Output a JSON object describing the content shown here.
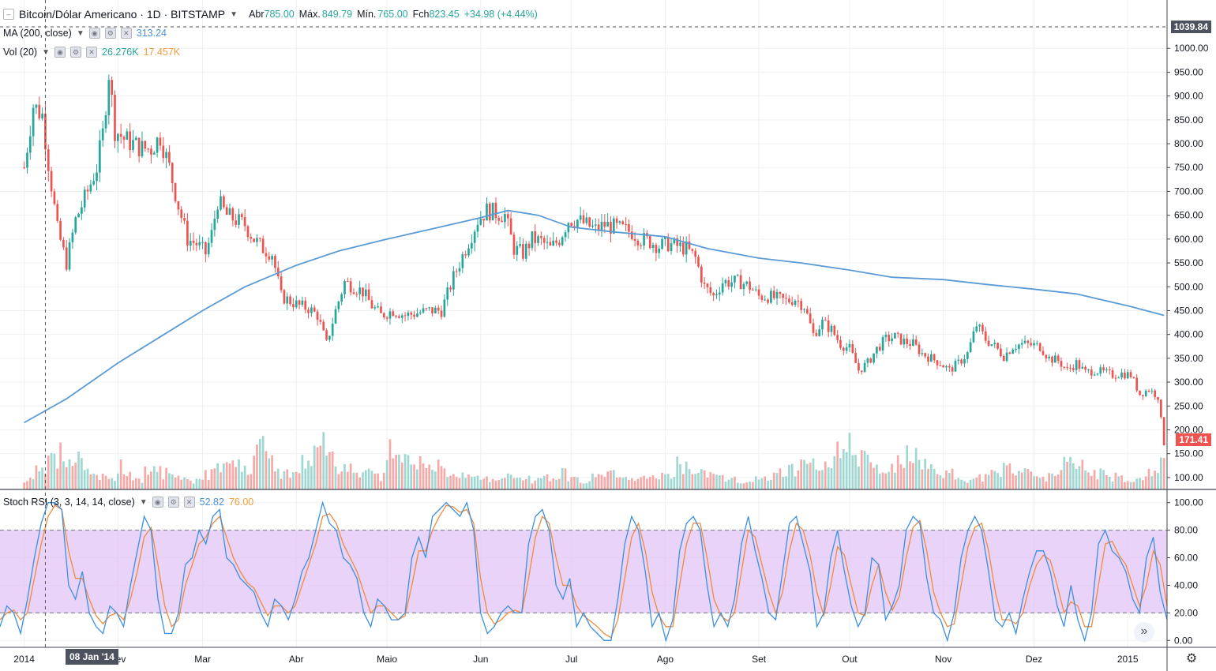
{
  "header": {
    "symbol": "Bitcoin/Dólar Americano · 1D · BITSTAMP",
    "open_label": "Abr",
    "open_value": "785.00",
    "high_label": "Máx.",
    "high_value": "849.79",
    "low_label": "Mín.",
    "low_value": "765.00",
    "close_label": "Fch",
    "close_value": "823.45",
    "change": "+34.98 (+4.44%)"
  },
  "indicators": {
    "ma_label": "MA (200, close)",
    "ma_value": "313.24",
    "vol_label": "Vol (20)",
    "vol_value1": "26.276K",
    "vol_value2": "17.457K",
    "stoch_label": "Stoch RSI (3, 3, 14, 14, close)",
    "stoch_k": "52.82",
    "stoch_d": "76.00"
  },
  "crosshair": {
    "date": "08 Jan '14",
    "price": "1039.84"
  },
  "last_price": "171.41",
  "colors": {
    "up": "#26a69a",
    "down": "#ef5350",
    "ma": "#5b9bd5",
    "k": "#3d8fe0",
    "d": "#f08a3c",
    "band": "#e1c4f7"
  },
  "chart_data": [
    {
      "type": "candlestick",
      "title": "Bitcoin/Dólar Americano · 1D · BITSTAMP",
      "x_ticks": [
        "2014",
        "Fev",
        "Mar",
        "Abr",
        "Maio",
        "Jun",
        "Jul",
        "Ago",
        "Set",
        "Out",
        "Nov",
        "Dez",
        "2015"
      ],
      "y_ticks": [
        "100.00",
        "150.00",
        "200.00",
        "250.00",
        "300.00",
        "350.00",
        "400.00",
        "450.00",
        "500.00",
        "550.00",
        "600.00",
        "650.00",
        "700.00",
        "750.00",
        "800.00",
        "850.00",
        "900.00",
        "950.00",
        "1000.00"
      ],
      "ylim": [
        75,
        1055
      ],
      "close_path": [
        [
          "2014-01-01",
          750
        ],
        [
          "2014-01-04",
          880
        ],
        [
          "2014-01-07",
          860
        ],
        [
          "2014-01-09",
          760
        ],
        [
          "2014-01-12",
          620
        ],
        [
          "2014-01-15",
          550
        ],
        [
          "2014-01-18",
          640
        ],
        [
          "2014-01-22",
          700
        ],
        [
          "2014-01-25",
          750
        ],
        [
          "2014-01-27",
          820
        ],
        [
          "2014-01-29",
          950
        ],
        [
          "2014-01-31",
          830
        ],
        [
          "2014-02-03",
          810
        ],
        [
          "2014-02-06",
          800
        ],
        [
          "2014-02-09",
          790
        ],
        [
          "2014-02-12",
          790
        ],
        [
          "2014-02-15",
          815
        ],
        [
          "2014-02-18",
          750
        ],
        [
          "2014-02-21",
          670
        ],
        [
          "2014-02-24",
          600
        ],
        [
          "2014-02-27",
          590
        ],
        [
          "2014-03-02",
          570
        ],
        [
          "2014-03-04",
          610
        ],
        [
          "2014-03-06",
          680
        ],
        [
          "2014-03-09",
          650
        ],
        [
          "2014-03-12",
          640
        ],
        [
          "2014-03-15",
          630
        ],
        [
          "2014-03-18",
          600
        ],
        [
          "2014-03-21",
          580
        ],
        [
          "2014-03-24",
          570
        ],
        [
          "2014-03-27",
          480
        ],
        [
          "2014-03-30",
          470
        ],
        [
          "2014-04-02",
          460
        ],
        [
          "2014-04-05",
          455
        ],
        [
          "2014-04-08",
          440
        ],
        [
          "2014-04-11",
          380
        ],
        [
          "2014-04-14",
          450
        ],
        [
          "2014-04-17",
          510
        ],
        [
          "2014-04-20",
          500
        ],
        [
          "2014-04-23",
          490
        ],
        [
          "2014-04-26",
          460
        ],
        [
          "2014-04-29",
          440
        ],
        [
          "2014-05-03",
          450
        ],
        [
          "2014-05-07",
          440
        ],
        [
          "2014-05-11",
          445
        ],
        [
          "2014-05-15",
          450
        ],
        [
          "2014-05-19",
          450
        ],
        [
          "2014-05-23",
          520
        ],
        [
          "2014-05-27",
          580
        ],
        [
          "2014-05-31",
          640
        ],
        [
          "2014-06-03",
          660
        ],
        [
          "2014-06-06",
          655
        ],
        [
          "2014-06-09",
          650
        ],
        [
          "2014-06-12",
          580
        ],
        [
          "2014-06-15",
          570
        ],
        [
          "2014-06-18",
          600
        ],
        [
          "2014-06-21",
          595
        ],
        [
          "2014-06-24",
          580
        ],
        [
          "2014-06-27",
          600
        ],
        [
          "2014-06-30",
          640
        ],
        [
          "2014-07-03",
          640
        ],
        [
          "2014-07-06",
          630
        ],
        [
          "2014-07-09",
          620
        ],
        [
          "2014-07-12",
          630
        ],
        [
          "2014-07-15",
          625
        ],
        [
          "2014-07-18",
          620
        ],
        [
          "2014-07-21",
          615
        ],
        [
          "2014-07-24",
          600
        ],
        [
          "2014-07-27",
          595
        ],
        [
          "2014-07-30",
          585
        ],
        [
          "2014-08-02",
          590
        ],
        [
          "2014-08-05",
          585
        ],
        [
          "2014-08-08",
          580
        ],
        [
          "2014-08-11",
          560
        ],
        [
          "2014-08-14",
          500
        ],
        [
          "2014-08-17",
          480
        ],
        [
          "2014-08-20",
          510
        ],
        [
          "2014-08-23",
          510
        ],
        [
          "2014-08-26",
          510
        ],
        [
          "2014-08-29",
          500
        ],
        [
          "2014-09-01",
          480
        ],
        [
          "2014-09-04",
          480
        ],
        [
          "2014-09-07",
          475
        ],
        [
          "2014-09-10",
          470
        ],
        [
          "2014-09-13",
          475
        ],
        [
          "2014-09-16",
          460
        ],
        [
          "2014-09-19",
          400
        ],
        [
          "2014-09-22",
          425
        ],
        [
          "2014-09-25",
          410
        ],
        [
          "2014-09-28",
          380
        ],
        [
          "2014-10-01",
          370
        ],
        [
          "2014-10-04",
          325
        ],
        [
          "2014-10-07",
          340
        ],
        [
          "2014-10-10",
          370
        ],
        [
          "2014-10-13",
          390
        ],
        [
          "2014-10-16",
          395
        ],
        [
          "2014-10-19",
          385
        ],
        [
          "2014-10-22",
          380
        ],
        [
          "2014-10-25",
          360
        ],
        [
          "2014-10-28",
          350
        ],
        [
          "2014-10-31",
          340
        ],
        [
          "2014-11-03",
          325
        ],
        [
          "2014-11-06",
          340
        ],
        [
          "2014-11-09",
          360
        ],
        [
          "2014-11-12",
          420
        ],
        [
          "2014-11-15",
          390
        ],
        [
          "2014-11-18",
          375
        ],
        [
          "2014-11-21",
          355
        ],
        [
          "2014-11-24",
          375
        ],
        [
          "2014-11-27",
          380
        ],
        [
          "2014-11-30",
          378
        ],
        [
          "2014-12-03",
          375
        ],
        [
          "2014-12-06",
          350
        ],
        [
          "2014-12-09",
          345
        ],
        [
          "2014-12-12",
          325
        ],
        [
          "2014-12-15",
          340
        ],
        [
          "2014-12-18",
          320
        ],
        [
          "2014-12-21",
          325
        ],
        [
          "2014-12-24",
          320
        ],
        [
          "2014-12-27",
          315
        ],
        [
          "2014-12-30",
          318
        ],
        [
          "2015-01-02",
          315
        ],
        [
          "2015-01-05",
          275
        ],
        [
          "2015-01-08",
          285
        ],
        [
          "2015-01-11",
          270
        ],
        [
          "2015-01-13",
          171
        ]
      ],
      "ma_series": {
        "name": "MA (200, close)",
        "points": [
          [
            "2014-01-01",
            215
          ],
          [
            "2014-01-15",
            265
          ],
          [
            "2014-02-01",
            340
          ],
          [
            "2014-02-15",
            395
          ],
          [
            "2014-03-01",
            450
          ],
          [
            "2014-03-15",
            500
          ],
          [
            "2014-04-01",
            545
          ],
          [
            "2014-04-15",
            575
          ],
          [
            "2014-05-01",
            600
          ],
          [
            "2014-05-15",
            620
          ],
          [
            "2014-06-01",
            645
          ],
          [
            "2014-06-10",
            660
          ],
          [
            "2014-06-20",
            650
          ],
          [
            "2014-07-01",
            625
          ],
          [
            "2014-07-15",
            615
          ],
          [
            "2014-08-01",
            605
          ],
          [
            "2014-08-15",
            580
          ],
          [
            "2014-09-01",
            560
          ],
          [
            "2014-09-15",
            550
          ],
          [
            "2014-10-01",
            535
          ],
          [
            "2014-10-15",
            520
          ],
          [
            "2014-11-01",
            515
          ],
          [
            "2014-11-15",
            505
          ],
          [
            "2014-12-01",
            495
          ],
          [
            "2014-12-15",
            485
          ],
          [
            "2015-01-01",
            460
          ],
          [
            "2015-01-13",
            440
          ]
        ]
      }
    },
    {
      "type": "bar",
      "title": "Vol (20)",
      "values_relative": [
        0.12,
        0.25,
        0.35,
        0.55,
        0.4,
        0.2,
        0.15,
        0.18,
        0.3,
        0.12,
        0.25,
        0.22,
        0.15,
        0.12,
        0.1,
        0.2,
        0.35,
        0.3,
        0.28,
        0.55,
        0.4,
        0.22,
        0.18,
        0.35,
        0.6,
        0.45,
        0.3,
        0.25,
        0.2,
        0.15,
        0.5,
        0.4,
        0.35,
        0.25,
        0.3,
        0.2,
        0.18,
        0.15,
        0.12,
        0.1,
        0.15,
        0.12,
        0.1,
        0.15,
        0.2,
        0.12,
        0.1,
        0.15,
        0.18,
        0.12,
        0.1,
        0.12,
        0.15,
        0.2,
        0.35,
        0.3,
        0.2,
        0.15,
        0.12,
        0.1,
        0.12,
        0.15,
        0.2,
        0.25,
        0.3,
        0.35,
        0.45,
        0.55,
        0.6,
        0.4,
        0.3,
        0.25,
        0.35,
        0.45,
        0.3,
        0.25,
        0.2,
        0.15,
        0.12,
        0.15,
        0.2,
        0.3,
        0.25,
        0.2,
        0.15,
        0.18,
        0.35,
        0.3,
        0.22,
        0.2,
        0.15,
        0.12
      ]
    },
    {
      "type": "line",
      "title": "Stoch RSI (3, 3, 14, 14, close)",
      "y_ticks": [
        "0.00",
        "20.00",
        "40.00",
        "60.00",
        "80.00",
        "100.00"
      ],
      "ylim": [
        -5,
        105
      ],
      "band": [
        20,
        80
      ],
      "series": [
        {
          "name": "%K",
          "values": [
            10,
            25,
            20,
            5,
            30,
            60,
            85,
            100,
            100,
            95,
            40,
            30,
            50,
            20,
            10,
            5,
            25,
            20,
            10,
            40,
            65,
            90,
            80,
            30,
            5,
            5,
            20,
            55,
            60,
            80,
            70,
            90,
            95,
            60,
            55,
            45,
            40,
            35,
            20,
            10,
            30,
            25,
            15,
            30,
            50,
            60,
            80,
            100,
            85,
            80,
            60,
            55,
            45,
            20,
            10,
            30,
            25,
            15,
            15,
            20,
            60,
            75,
            60,
            90,
            95,
            100,
            95,
            90,
            100,
            80,
            20,
            5,
            10,
            20,
            25,
            20,
            20,
            70,
            90,
            95,
            80,
            40,
            30,
            45,
            10,
            20,
            10,
            5,
            0,
            0,
            30,
            70,
            90,
            80,
            50,
            10,
            20,
            0,
            15,
            65,
            85,
            90,
            80,
            40,
            10,
            20,
            10,
            30,
            70,
            90,
            65,
            45,
            20,
            15,
            50,
            85,
            90,
            70,
            50,
            10,
            20,
            60,
            80,
            50,
            25,
            10,
            20,
            60,
            55,
            15,
            25,
            40,
            80,
            90,
            85,
            45,
            20,
            15,
            0,
            20,
            60,
            80,
            90,
            80,
            50,
            15,
            10,
            20,
            5,
            30,
            50,
            65,
            65,
            50,
            25,
            10,
            40,
            15,
            0,
            20,
            70,
            80,
            65,
            60,
            50,
            30,
            20,
            60,
            75,
            35,
            15
          ]
        },
        {
          "name": "%D",
          "values": [
            15,
            20,
            22,
            15,
            20,
            45,
            70,
            90,
            98,
            95,
            65,
            45,
            45,
            30,
            18,
            12,
            18,
            20,
            15,
            30,
            50,
            75,
            82,
            55,
            25,
            10,
            15,
            40,
            55,
            70,
            75,
            85,
            90,
            75,
            60,
            50,
            42,
            38,
            28,
            18,
            25,
            25,
            20,
            25,
            40,
            55,
            70,
            90,
            92,
            85,
            70,
            60,
            50,
            35,
            20,
            25,
            25,
            20,
            15,
            18,
            40,
            65,
            65,
            80,
            90,
            98,
            97,
            93,
            95,
            85,
            45,
            20,
            12,
            15,
            20,
            22,
            20,
            45,
            75,
            90,
            85,
            60,
            40,
            40,
            25,
            18,
            14,
            10,
            5,
            2,
            15,
            45,
            75,
            85,
            65,
            35,
            18,
            10,
            10,
            40,
            70,
            85,
            85,
            60,
            30,
            18,
            14,
            20,
            50,
            80,
            75,
            55,
            35,
            20,
            35,
            65,
            85,
            80,
            62,
            35,
            18,
            40,
            68,
            62,
            40,
            20,
            18,
            40,
            55,
            35,
            22,
            32,
            60,
            82,
            87,
            65,
            35,
            20,
            10,
            12,
            40,
            68,
            82,
            85,
            65,
            35,
            15,
            15,
            12,
            20,
            40,
            55,
            62,
            58,
            40,
            20,
            28,
            25,
            10,
            10,
            40,
            70,
            72,
            62,
            55,
            40,
            25,
            40,
            65,
            55,
            25
          ]
        }
      ]
    }
  ]
}
